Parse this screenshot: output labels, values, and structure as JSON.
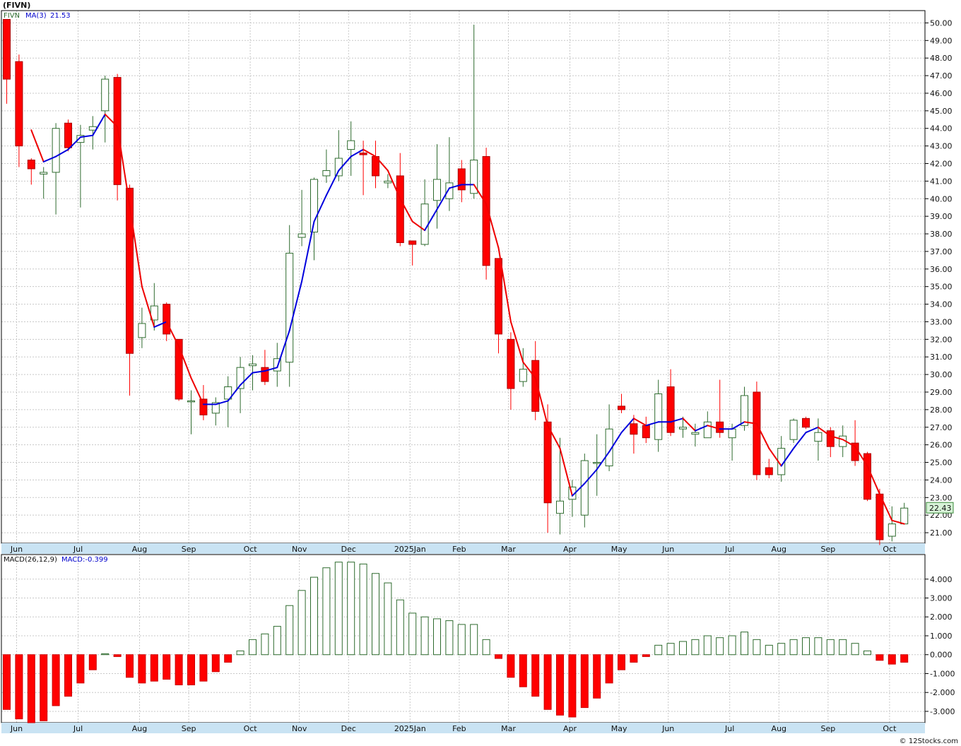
{
  "page_title": "(FIVN)",
  "credit": "© 12Stocks.com",
  "legend": {
    "ticker": "FIVN",
    "ma_label": "MA(3)",
    "ma_value": "21.53",
    "macd_label": "MACD(26,12,9)",
    "macd_value": "MACD:-0.399"
  },
  "last_price_label": "22.43",
  "colors": {
    "up": "#2e6b2e",
    "down": "#ff0000",
    "ma_up": "#0000dd",
    "ma_down": "#ee0000",
    "background": "#ffffff",
    "grid": "#c8c8c8"
  },
  "chart_data": [
    {
      "type": "candlestick",
      "ylim": [
        20.4,
        50.7
      ],
      "y_ticks": [
        "21.00",
        "22.00",
        "23.00",
        "24.00",
        "25.00",
        "26.00",
        "27.00",
        "28.00",
        "29.00",
        "30.00",
        "31.00",
        "32.00",
        "33.00",
        "34.00",
        "35.00",
        "36.00",
        "37.00",
        "38.00",
        "39.00",
        "40.00",
        "41.00",
        "42.00",
        "43.00",
        "44.00",
        "45.00",
        "46.00",
        "47.00",
        "48.00",
        "49.00",
        "50.00"
      ],
      "months": [
        {
          "label": "Jun",
          "index": 0
        },
        {
          "label": "Jul",
          "index": 5
        },
        {
          "label": "Aug",
          "index": 10
        },
        {
          "label": "Sep",
          "index": 14
        },
        {
          "label": "Oct",
          "index": 19
        },
        {
          "label": "Nov",
          "index": 23
        },
        {
          "label": "Dec",
          "index": 27
        },
        {
          "label": "2025Jan",
          "index": 32
        },
        {
          "label": "Feb",
          "index": 36
        },
        {
          "label": "Mar",
          "index": 40
        },
        {
          "label": "Apr",
          "index": 45
        },
        {
          "label": "May",
          "index": 49
        },
        {
          "label": "Jun",
          "index": 53
        },
        {
          "label": "Jul",
          "index": 58
        },
        {
          "label": "Aug",
          "index": 62
        },
        {
          "label": "Sep",
          "index": 66
        },
        {
          "label": "Oct",
          "index": 71
        }
      ],
      "candles": [
        [
          50.2,
          50.2,
          45.4,
          46.8
        ],
        [
          47.8,
          48.2,
          41.8,
          43.0
        ],
        [
          42.2,
          42.3,
          40.8,
          41.7
        ],
        [
          41.4,
          41.8,
          40.0,
          41.5
        ],
        [
          41.5,
          44.3,
          39.1,
          44.0
        ],
        [
          44.3,
          44.5,
          42.7,
          42.9
        ],
        [
          43.2,
          44.2,
          39.5,
          43.6
        ],
        [
          43.9,
          44.7,
          42.8,
          44.1
        ],
        [
          45.0,
          47.0,
          43.2,
          46.8
        ],
        [
          46.9,
          47.1,
          39.9,
          40.8
        ],
        [
          40.6,
          40.8,
          28.8,
          31.2
        ],
        [
          32.1,
          33.8,
          31.5,
          32.9
        ],
        [
          33.1,
          35.2,
          32.5,
          33.9
        ],
        [
          34.0,
          34.1,
          31.9,
          32.3
        ],
        [
          32.0,
          32.0,
          28.5,
          28.6
        ],
        [
          28.5,
          29.1,
          26.6,
          28.5
        ],
        [
          28.6,
          29.4,
          27.4,
          27.7
        ],
        [
          27.8,
          28.7,
          27.1,
          28.4
        ],
        [
          28.6,
          29.9,
          27.0,
          29.3
        ],
        [
          29.2,
          31.0,
          27.8,
          30.4
        ],
        [
          30.5,
          31.1,
          29.1,
          30.6
        ],
        [
          30.4,
          31.4,
          29.4,
          29.6
        ],
        [
          30.2,
          31.8,
          29.3,
          30.9
        ],
        [
          30.7,
          38.5,
          29.3,
          36.9
        ],
        [
          37.8,
          40.5,
          37.3,
          38.0
        ],
        [
          38.1,
          41.2,
          36.5,
          41.1
        ],
        [
          41.3,
          42.8,
          40.9,
          41.6
        ],
        [
          41.3,
          43.9,
          41.0,
          42.3
        ],
        [
          42.8,
          44.4,
          41.3,
          43.3
        ],
        [
          42.6,
          43.3,
          40.2,
          42.5
        ],
        [
          42.4,
          43.3,
          40.6,
          41.3
        ],
        [
          40.9,
          41.4,
          40.6,
          41.0
        ],
        [
          41.3,
          42.6,
          37.3,
          37.5
        ],
        [
          37.6,
          37.6,
          36.2,
          37.4
        ],
        [
          37.4,
          41.1,
          37.3,
          39.7
        ],
        [
          39.9,
          43.1,
          38.3,
          41.1
        ],
        [
          40.0,
          43.5,
          39.3,
          40.9
        ],
        [
          41.7,
          42.2,
          39.8,
          40.5
        ],
        [
          40.3,
          49.9,
          40.0,
          42.2
        ],
        [
          42.4,
          42.9,
          35.4,
          36.2
        ],
        [
          36.6,
          36.6,
          31.2,
          32.3
        ],
        [
          32.0,
          32.4,
          28.0,
          29.2
        ],
        [
          29.6,
          31.5,
          29.3,
          30.3
        ],
        [
          30.8,
          31.9,
          27.4,
          27.9
        ],
        [
          27.3,
          28.3,
          21.0,
          22.7
        ],
        [
          22.1,
          26.4,
          20.9,
          22.8
        ],
        [
          22.9,
          24.0,
          21.9,
          23.6
        ],
        [
          22.0,
          25.5,
          21.3,
          25.1
        ],
        [
          25.0,
          26.6,
          23.1,
          25.0
        ],
        [
          24.8,
          28.3,
          24.5,
          26.9
        ],
        [
          28.2,
          28.9,
          27.8,
          28.0
        ],
        [
          27.2,
          27.7,
          25.5,
          26.6
        ],
        [
          27.1,
          27.6,
          26.1,
          26.4
        ],
        [
          26.3,
          29.7,
          25.6,
          28.9
        ],
        [
          29.3,
          30.3,
          26.5,
          26.7
        ],
        [
          26.9,
          27.6,
          26.4,
          27.0
        ],
        [
          26.6,
          27.2,
          25.9,
          26.7
        ],
        [
          26.4,
          27.9,
          26.4,
          27.3
        ],
        [
          27.3,
          29.7,
          26.4,
          26.7
        ],
        [
          26.4,
          27.2,
          25.1,
          26.9
        ],
        [
          27.1,
          29.3,
          26.8,
          28.8
        ],
        [
          29.0,
          29.6,
          24.0,
          24.3
        ],
        [
          24.7,
          25.2,
          24.1,
          24.3
        ],
        [
          24.3,
          26.5,
          23.9,
          25.8
        ],
        [
          26.3,
          27.5,
          26.1,
          27.4
        ],
        [
          27.5,
          27.6,
          26.9,
          27.0
        ],
        [
          26.2,
          27.5,
          25.1,
          26.7
        ],
        [
          26.8,
          27.0,
          25.3,
          25.9
        ],
        [
          25.9,
          27.1,
          25.3,
          26.5
        ],
        [
          26.1,
          27.4,
          24.8,
          25.1
        ],
        [
          25.5,
          25.6,
          22.8,
          22.9
        ],
        [
          23.2,
          23.5,
          20.3,
          20.6
        ],
        [
          20.8,
          22.5,
          20.5,
          21.5
        ],
        [
          21.5,
          22.7,
          21.5,
          22.4
        ]
      ],
      "ma": [
        null,
        null,
        43.9,
        42.1,
        42.4,
        42.8,
        43.5,
        43.6,
        44.8,
        44.1,
        39.6,
        35.0,
        32.7,
        33.0,
        31.6,
        29.8,
        28.3,
        28.3,
        28.5,
        29.4,
        30.1,
        30.2,
        30.4,
        32.5,
        35.3,
        38.7,
        40.2,
        41.6,
        42.4,
        42.8,
        42.4,
        41.6,
        40.0,
        38.7,
        38.2,
        39.4,
        40.6,
        40.8,
        40.8,
        39.7,
        37.2,
        33.0,
        30.7,
        29.8,
        27.1,
        25.8,
        23.1,
        23.8,
        24.6,
        25.6,
        26.7,
        27.5,
        27.1,
        27.3,
        27.3,
        27.5,
        26.8,
        27.1,
        26.9,
        26.9,
        27.3,
        27.2,
        25.8,
        24.8,
        25.8,
        26.7,
        27.0,
        26.5,
        26.3,
        25.9,
        24.8,
        23.2,
        21.7,
        21.5
      ]
    },
    {
      "type": "bar",
      "title": "MACD(26,12,9)",
      "ylim": [
        -3.6,
        5.3
      ],
      "y_ticks": [
        "4.000",
        "3.000",
        "2.000",
        "1.000",
        "0.000",
        "-1.000",
        "-2.000",
        "-3.000"
      ],
      "values": [
        -2.9,
        -3.4,
        -3.6,
        -3.5,
        -2.7,
        -2.2,
        -1.5,
        -0.8,
        0.05,
        -0.1,
        -1.2,
        -1.5,
        -1.4,
        -1.3,
        -1.6,
        -1.6,
        -1.4,
        -0.9,
        -0.4,
        0.2,
        0.8,
        1.1,
        1.5,
        2.6,
        3.4,
        4.1,
        4.6,
        4.9,
        4.9,
        4.8,
        4.3,
        3.8,
        2.9,
        2.2,
        2.0,
        1.9,
        1.8,
        1.6,
        1.6,
        0.8,
        -0.2,
        -1.2,
        -1.7,
        -2.2,
        -2.9,
        -3.2,
        -3.3,
        -2.8,
        -2.3,
        -1.5,
        -0.8,
        -0.4,
        -0.1,
        0.5,
        0.6,
        0.7,
        0.8,
        1.0,
        0.9,
        1.0,
        1.2,
        0.8,
        0.5,
        0.6,
        0.8,
        0.9,
        0.9,
        0.8,
        0.8,
        0.6,
        0.2,
        -0.3,
        -0.5,
        -0.4
      ]
    }
  ]
}
